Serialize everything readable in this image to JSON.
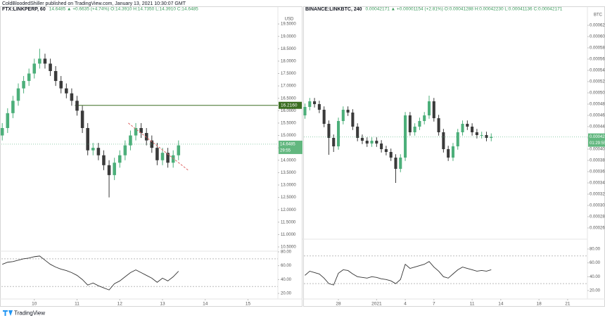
{
  "header": {
    "text": "ColdBloodedShiller published on TradingView.com, January 13, 2021 10:30:07 GMT"
  },
  "footer": {
    "text": "TradingView"
  },
  "chart_data": [
    {
      "type": "candlestick",
      "symbol": "FTX:LINKPERP, 60",
      "quote": "14.6485  ▲ +0.6635 (+4.74%)  O:14.3910 H:14.7350 L:14.3910 C:14.6485",
      "currency": "USD",
      "up_color": "#4caf7a",
      "down_color": "#3a3a3a",
      "grid": false,
      "x": [
        9.25,
        9.375,
        9.5,
        9.625,
        9.75,
        9.875,
        10,
        10.125,
        10.25,
        10.375,
        10.5,
        10.625,
        10.75,
        10.875,
        11,
        11.125,
        11.25,
        11.375,
        11.5,
        11.625,
        11.75,
        11.875,
        12,
        12.125,
        12.25,
        12.375,
        12.5,
        12.625,
        12.75,
        12.875,
        13,
        13.125,
        13.25,
        13.375
      ],
      "open": [
        15.0,
        15.3,
        15.9,
        16.4,
        16.9,
        17.2,
        17.5,
        17.9,
        18.1,
        17.9,
        17.6,
        17.2,
        16.9,
        16.7,
        16.4,
        16.0,
        15.3,
        14.4,
        14.5,
        14.2,
        13.8,
        13.4,
        13.9,
        14.2,
        14.6,
        15.0,
        15.3,
        15.1,
        14.8,
        14.5,
        14.0,
        14.3,
        13.9,
        14.2
      ],
      "high": [
        15.5,
        16.1,
        16.6,
        17.1,
        17.4,
        17.7,
        18.1,
        18.5,
        18.3,
        18.1,
        17.8,
        17.4,
        17.1,
        16.9,
        16.6,
        16.2,
        15.5,
        14.7,
        14.7,
        14.4,
        14.0,
        14.1,
        14.4,
        14.8,
        15.2,
        15.5,
        15.5,
        15.3,
        15.0,
        14.7,
        14.5,
        14.5,
        14.4,
        14.8
      ],
      "low": [
        14.8,
        15.1,
        15.7,
        16.2,
        16.7,
        17.0,
        17.3,
        17.7,
        17.7,
        17.4,
        17.0,
        16.7,
        16.5,
        16.2,
        15.8,
        15.1,
        14.2,
        14.2,
        14.0,
        13.6,
        12.5,
        13.2,
        13.7,
        14.0,
        14.4,
        14.8,
        14.9,
        14.6,
        14.3,
        13.8,
        13.8,
        13.7,
        13.7,
        14.0
      ],
      "close": [
        15.3,
        15.9,
        16.4,
        16.9,
        17.2,
        17.5,
        17.9,
        18.1,
        17.9,
        17.6,
        17.2,
        16.9,
        16.7,
        16.4,
        16.0,
        15.3,
        14.4,
        14.5,
        14.2,
        13.8,
        13.4,
        13.9,
        14.2,
        14.6,
        15.0,
        15.3,
        15.1,
        14.8,
        14.5,
        14.0,
        14.3,
        13.9,
        14.2,
        14.6
      ],
      "xlim": [
        9.23,
        15.7
      ],
      "xticks": [
        10,
        11,
        12,
        13,
        14,
        15
      ],
      "ylim": [
        10.33,
        19.9
      ],
      "yticks": [
        {
          "value": 10.5,
          "label": "10.5000"
        },
        {
          "value": 11,
          "label": "11.0000"
        },
        {
          "value": 11.5,
          "label": "11.5000"
        },
        {
          "value": 12,
          "label": "12.0000"
        },
        {
          "value": 12.5,
          "label": "12.5000"
        },
        {
          "value": 13,
          "label": "13.0000"
        },
        {
          "value": 13.5,
          "label": "13.5000"
        },
        {
          "value": 14,
          "label": "14.0000"
        },
        {
          "value": 14.5,
          "label": "14.5000"
        },
        {
          "value": 15,
          "label": "15.0000"
        },
        {
          "value": 15.5,
          "label": "15.5000"
        },
        {
          "value": 16,
          "label": "16.0000"
        },
        {
          "value": 16.5,
          "label": "16.5000"
        },
        {
          "value": 17,
          "label": "17.0000"
        },
        {
          "value": 17.5,
          "label": "17.5000"
        },
        {
          "value": 18,
          "label": "18.0000"
        },
        {
          "value": 18.5,
          "label": "18.5000"
        },
        {
          "value": 19,
          "label": "19.0000"
        },
        {
          "value": 19.5,
          "label": "19.5000"
        }
      ],
      "hline": {
        "value": 16.216,
        "label": "16.2160",
        "x": 10.95,
        "color": "#3b6e22"
      },
      "trendline": {
        "x": [
          12.2,
          13.6
        ],
        "y": [
          15.5,
          13.6
        ],
        "color": "#e06666"
      },
      "last_price": 14.6485,
      "countdown": "29:55",
      "rsi": {
        "color": "#333333",
        "ylim": [
          11.9,
          81
        ],
        "levels": [
          70,
          30
        ],
        "yticks": [
          {
            "value": 20,
            "label": "20.00"
          },
          {
            "value": 40,
            "label": "40.00"
          },
          {
            "value": 60,
            "label": "60.00"
          },
          {
            "value": 80,
            "label": "80.00"
          }
        ],
        "values": [
          62,
          65,
          66,
          68,
          70,
          71,
          73,
          74,
          68,
          62,
          58,
          55,
          53,
          50,
          46,
          40,
          32,
          35,
          31,
          28,
          25,
          34,
          38,
          44,
          50,
          54,
          50,
          46,
          42,
          36,
          42,
          38,
          44,
          52
        ]
      }
    },
    {
      "type": "candlestick",
      "symbol": "BINANCE:LINKBTC, 240",
      "quote": "0.00042171  ▲ +0.00001154 (+2.81%)  O:0.00041288 H:0.00042230 L:0.00041136 C:0.00042171",
      "currency": "BTC",
      "up_color": "#4caf7a",
      "down_color": "#3a3a3a",
      "grid": false,
      "x": [
        -3.5,
        -3,
        -2.5,
        -2,
        -1.5,
        -1,
        -0.5,
        0,
        0.5,
        1,
        1.5,
        2,
        2.5,
        3,
        3.5,
        4,
        4.5,
        5,
        5.5,
        6,
        6.5,
        7,
        7.5,
        8,
        8.5,
        9,
        9.5,
        10,
        10.5,
        11,
        11.5,
        12,
        12.5,
        13,
        13.5,
        14,
        14.5,
        15,
        15.5,
        16
      ],
      "open": [
        0.00046,
        0.000475,
        0.000485,
        0.00048,
        0.00047,
        0.000445,
        0.00042,
        0.000405,
        0.00045,
        0.00047,
        0.000465,
        0.00044,
        0.00042,
        0.000415,
        0.00041,
        0.000415,
        0.00041,
        0.0004,
        0.000395,
        0.000385,
        0.000365,
        0.000385,
        0.00046,
        0.00043,
        0.00044,
        0.00045,
        0.00046,
        0.000485,
        0.000455,
        0.00043,
        0.0004,
        0.000385,
        0.000405,
        0.00043,
        0.000445,
        0.00044,
        0.00043,
        0.000425,
        0.000425,
        0.00042
      ],
      "high": [
        0.000481,
        0.000491,
        0.000491,
        0.000486,
        0.000476,
        0.000451,
        0.000426,
        0.000456,
        0.000476,
        0.000476,
        0.000471,
        0.000446,
        0.000426,
        0.000421,
        0.000421,
        0.000421,
        0.000416,
        0.000406,
        0.000401,
        0.000391,
        0.000391,
        0.000466,
        0.000466,
        0.000446,
        0.000456,
        0.000466,
        0.000495,
        0.000491,
        0.000461,
        0.000436,
        0.000406,
        0.000411,
        0.000436,
        0.000451,
        0.000451,
        0.000446,
        0.000436,
        0.000431,
        0.000431,
        0.000428
      ],
      "low": [
        0.000454,
        0.000469,
        0.000474,
        0.000464,
        0.000439,
        0.00039,
        0.000395,
        0.000399,
        0.000444,
        0.000459,
        0.000434,
        0.000414,
        0.000409,
        0.000404,
        0.000404,
        0.000404,
        0.000394,
        0.000389,
        0.000379,
        0.00034,
        0.000359,
        0.000379,
        0.000424,
        0.000424,
        0.000434,
        0.000444,
        0.000454,
        0.000449,
        0.000424,
        0.000394,
        0.000379,
        0.000379,
        0.000399,
        0.000424,
        0.000434,
        0.000424,
        0.000419,
        0.000419,
        0.000414,
        0.000414
      ],
      "close": [
        0.000475,
        0.000485,
        0.00048,
        0.00047,
        0.000445,
        0.00042,
        0.000405,
        0.00045,
        0.00047,
        0.000465,
        0.00044,
        0.00042,
        0.000415,
        0.00041,
        0.000415,
        0.00041,
        0.0004,
        0.000395,
        0.000385,
        0.000365,
        0.000385,
        0.00046,
        0.00043,
        0.00044,
        0.00045,
        0.00046,
        0.000485,
        0.000455,
        0.00043,
        0.0004,
        0.000385,
        0.000405,
        0.00043,
        0.000445,
        0.00044,
        0.00043,
        0.000425,
        0.000425,
        0.00042,
        0.00042171
      ],
      "xlim": [
        -3.61,
        26.07
      ],
      "xticks": [
        {
          "value": 0,
          "label": "28"
        },
        {
          "value": 4,
          "label": "2021"
        },
        {
          "value": 7,
          "label": "4"
        },
        {
          "value": 10,
          "label": "7"
        },
        {
          "value": 14,
          "label": "11"
        },
        {
          "value": 17,
          "label": "14"
        },
        {
          "value": 21,
          "label": "18"
        },
        {
          "value": 24,
          "label": "21"
        }
      ],
      "ylim": [
        0.00024,
        0.00064
      ],
      "yticks": [
        {
          "value": 0.00026,
          "label": "0.00026000"
        },
        {
          "value": 0.00028,
          "label": "0.00028000"
        },
        {
          "value": 0.0003,
          "label": "0.00030000"
        },
        {
          "value": 0.00032,
          "label": "0.00032000"
        },
        {
          "value": 0.00034,
          "label": "0.00034000"
        },
        {
          "value": 0.00036,
          "label": "0.00036000"
        },
        {
          "value": 0.00038,
          "label": "0.00038000"
        },
        {
          "value": 0.0004,
          "label": "0.00040000"
        },
        {
          "value": 0.00042,
          "label": "0.00042000"
        },
        {
          "value": 0.00044,
          "label": "0.00044000"
        },
        {
          "value": 0.00046,
          "label": "0.00046000"
        },
        {
          "value": 0.00048,
          "label": "0.00048000"
        },
        {
          "value": 0.0005,
          "label": "0.00050000"
        },
        {
          "value": 0.00052,
          "label": "0.00052000"
        },
        {
          "value": 0.00054,
          "label": "0.00054000"
        },
        {
          "value": 0.00056,
          "label": "0.00056000"
        },
        {
          "value": 0.00058,
          "label": "0.00058000"
        },
        {
          "value": 0.0006,
          "label": "0.00060000"
        },
        {
          "value": 0.00062,
          "label": "0.00062000"
        }
      ],
      "last_price": 0.00042171,
      "countdown": "01:29:55",
      "rsi": {
        "color": "#333333",
        "ylim": [
          7.8,
          94.2
        ],
        "levels": [
          70,
          30
        ],
        "yticks": [
          {
            "value": 20,
            "label": "20.00"
          },
          {
            "value": 40,
            "label": "40.00"
          },
          {
            "value": 60,
            "label": "60.00"
          },
          {
            "value": 80,
            "label": "80.00"
          }
        ],
        "values": [
          42,
          48,
          46,
          44,
          38,
          30,
          28,
          45,
          50,
          49,
          44,
          40,
          39,
          38,
          40,
          39,
          37,
          36,
          34,
          30,
          36,
          58,
          52,
          54,
          56,
          58,
          62,
          54,
          48,
          40,
          38,
          44,
          50,
          54,
          52,
          50,
          48,
          49,
          48,
          50
        ]
      }
    }
  ]
}
